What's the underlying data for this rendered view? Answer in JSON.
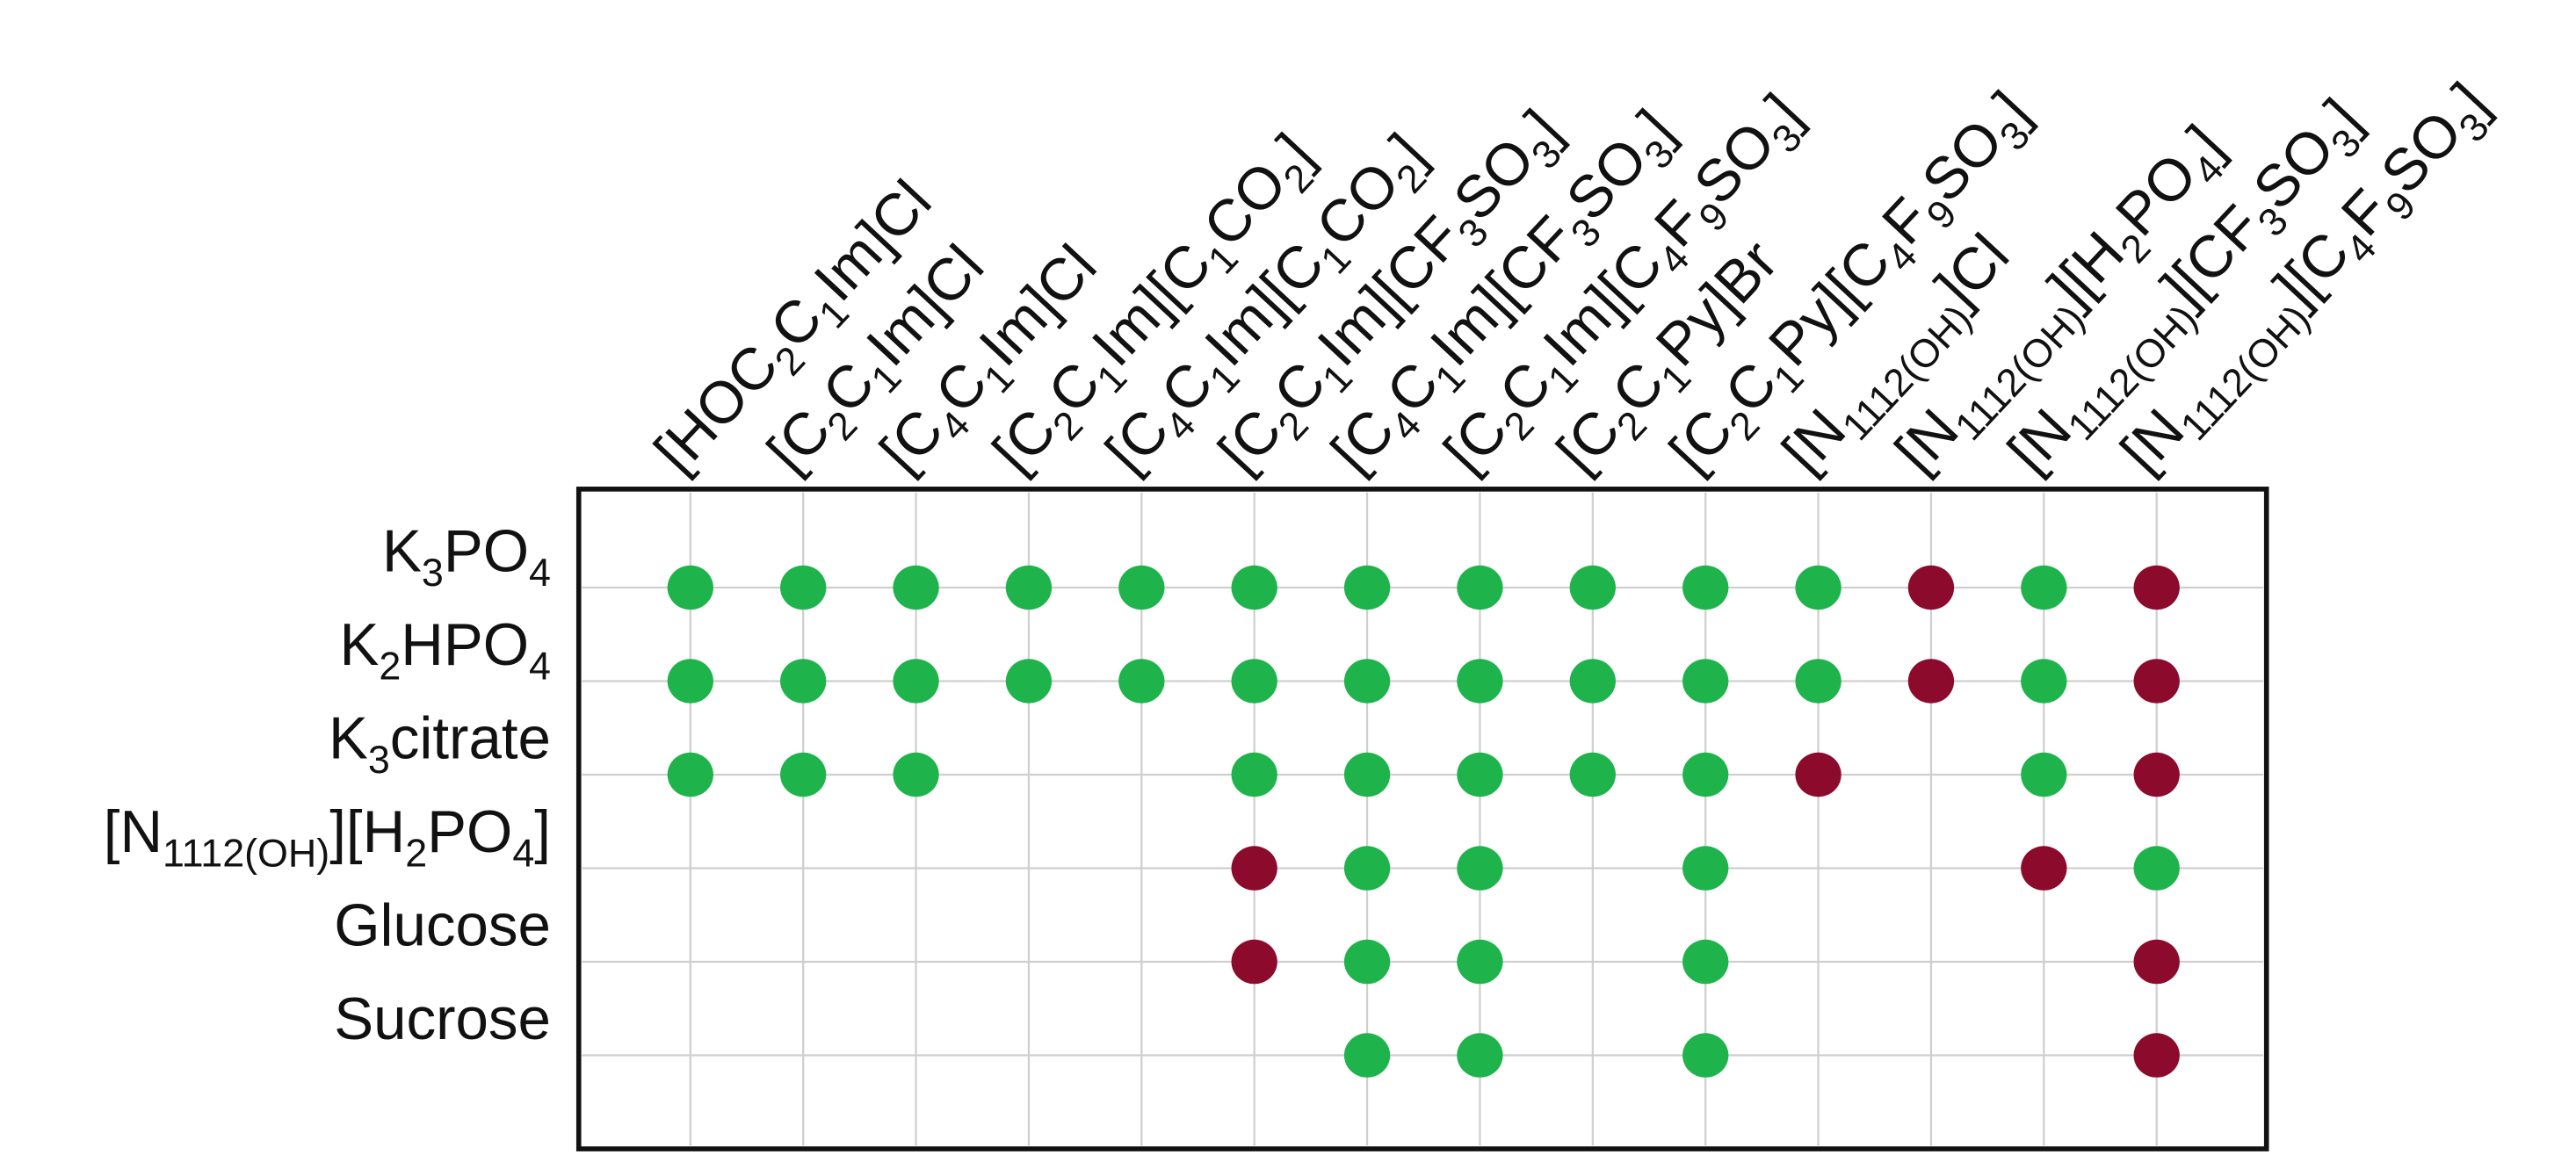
{
  "matrix": {
    "columns": [
      [
        "[HOC",
        "2",
        "C",
        "1",
        "Im]Cl"
      ],
      [
        "[C",
        "2",
        "C",
        "1",
        "Im]Cl"
      ],
      [
        "[C",
        "4",
        "C",
        "1",
        "Im]Cl"
      ],
      [
        "[C",
        "2",
        "C",
        "1",
        "Im][C",
        "1",
        "CO",
        "2",
        "]"
      ],
      [
        "[C",
        "4",
        "C",
        "1",
        "Im][C",
        "1",
        "CO",
        "2",
        "]"
      ],
      [
        "[C",
        "2",
        "C",
        "1",
        "Im][CF",
        "3",
        "SO",
        "3",
        "]"
      ],
      [
        "[C",
        "4",
        "C",
        "1",
        "Im][CF",
        "3",
        "SO",
        "3",
        "]"
      ],
      [
        "[C",
        "2",
        "C",
        "1",
        "Im][C",
        "4",
        "F",
        "9",
        "SO",
        "3",
        "]"
      ],
      [
        "[C",
        "2",
        "C",
        "1",
        "Py]Br"
      ],
      [
        "[C",
        "2",
        "C",
        "1",
        "Py][C",
        "4",
        "F",
        "9",
        "SO",
        "3",
        "]"
      ],
      [
        "[N",
        "1112(OH)",
        "]Cl"
      ],
      [
        "[N",
        "1112(OH)",
        "][H",
        "2",
        "PO",
        "4",
        "]"
      ],
      [
        "[N",
        "1112(OH)",
        "][CF",
        "3",
        "SO",
        "3",
        "]"
      ],
      [
        "[N",
        "1112(OH)",
        "][C",
        "4",
        "F",
        "9",
        "SO",
        "3",
        "]"
      ]
    ],
    "rows": [
      [
        "K",
        "3",
        "PO",
        "4"
      ],
      [
        "K",
        "2",
        "HPO",
        "4"
      ],
      [
        "K",
        "3",
        "citrate"
      ],
      [
        "[N",
        "1112(OH)",
        "][H",
        "2",
        "PO",
        "4",
        "]"
      ],
      [
        "Glucose"
      ],
      [
        "Sucrose"
      ]
    ],
    "colors": {
      "green": "#1fb44b",
      "red": "#8c0b2c"
    },
    "cells": [
      [
        "green",
        "green",
        "green",
        "green",
        "green",
        "green",
        "green",
        "green",
        "green",
        "green",
        "green",
        "red",
        "green",
        "red"
      ],
      [
        "green",
        "green",
        "green",
        "green",
        "green",
        "green",
        "green",
        "green",
        "green",
        "green",
        "green",
        "red",
        "green",
        "red"
      ],
      [
        "green",
        "green",
        "green",
        null,
        null,
        "green",
        "green",
        "green",
        "green",
        "green",
        "red",
        null,
        "green",
        "red"
      ],
      [
        null,
        null,
        null,
        null,
        null,
        "red",
        "green",
        "green",
        null,
        "green",
        null,
        null,
        "red",
        "green"
      ],
      [
        null,
        null,
        null,
        null,
        null,
        "red",
        "green",
        "green",
        null,
        "green",
        null,
        null,
        null,
        "red"
      ],
      [
        null,
        null,
        null,
        null,
        null,
        null,
        "green",
        "green",
        null,
        "green",
        null,
        null,
        null,
        "red"
      ]
    ]
  }
}
